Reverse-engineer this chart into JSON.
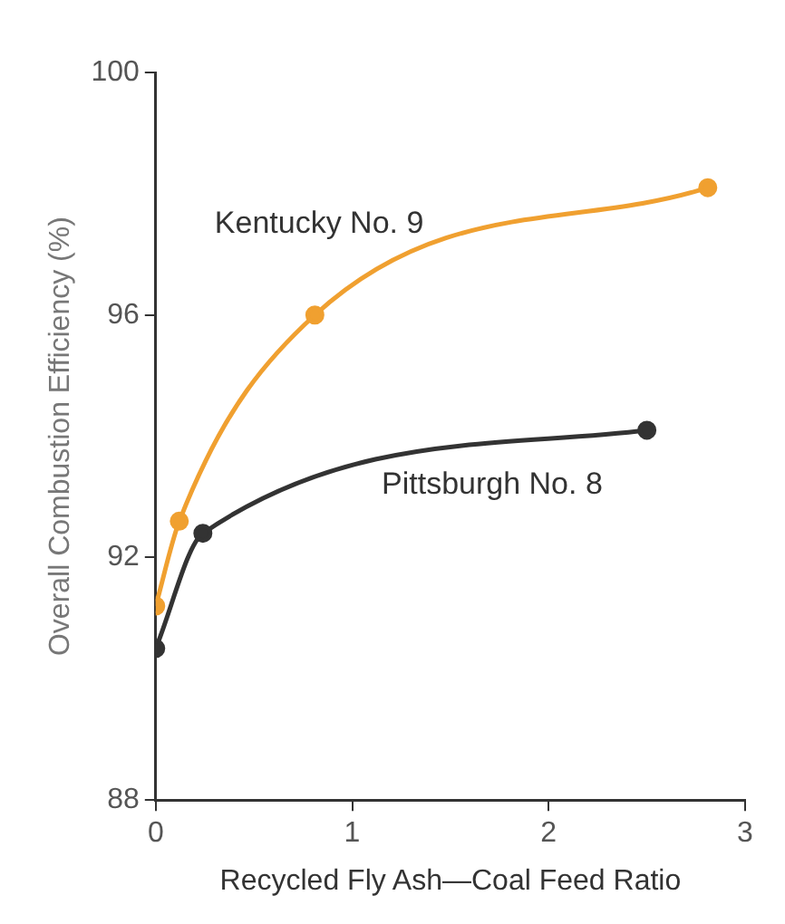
{
  "chart_data": {
    "type": "line",
    "xlabel": "Recycled Fly Ash—Coal Feed Ratio",
    "ylabel": "Overall Combustion Efficiency (%)",
    "xlim": [
      0,
      3
    ],
    "xticks": [
      0,
      1,
      2,
      3
    ],
    "ylim": [
      88,
      100
    ],
    "yticks": [
      88,
      92,
      96,
      100
    ],
    "grid": false,
    "legend": false,
    "marker": "circle",
    "series": [
      {
        "name": "Kentucky No. 9",
        "color": "#f0a030",
        "x": [
          0,
          0.12,
          0.81,
          2.81
        ],
        "values": [
          91.2,
          92.6,
          96,
          98.1
        ]
      },
      {
        "name": "Pittsburgh No. 8",
        "color": "#333333",
        "x": [
          0,
          0.24,
          2.5
        ],
        "values": [
          90.5,
          92.4,
          94.1
        ]
      }
    ]
  }
}
